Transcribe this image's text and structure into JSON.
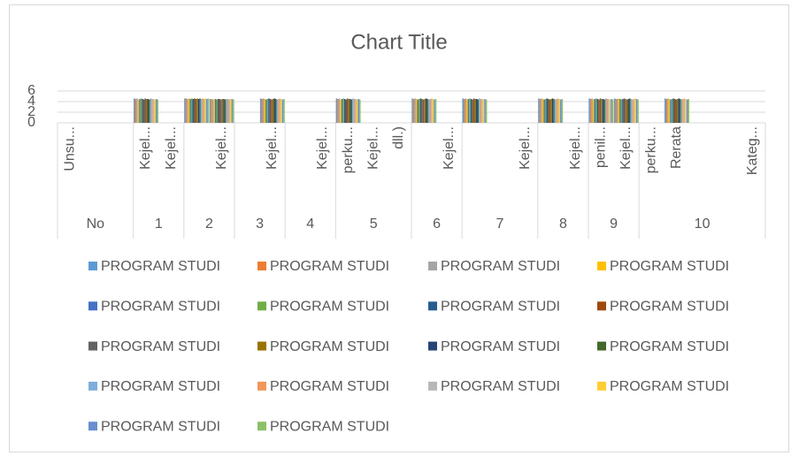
{
  "chart_data": {
    "type": "bar",
    "title": "Chart Title",
    "ylim": [
      0,
      6
    ],
    "yticks": [
      0,
      2,
      4,
      6
    ],
    "grid": true,
    "legend": "bottom",
    "categories": [
      "Unsu...",
      null,
      null,
      "Kejel...",
      "Kejel...",
      null,
      "Kejel...",
      null,
      "Kejel...",
      null,
      "Kejel...",
      "perku...",
      "Kejel...",
      "dll.)",
      null,
      "Kejel...",
      null,
      null,
      "Kejel...",
      null,
      "Kejel...",
      "penil...",
      "Kejel...",
      "perku...",
      "Rerata",
      null,
      null,
      "Kateg..."
    ],
    "category_groups": [
      "No",
      null,
      null,
      "1",
      null,
      "2",
      null,
      "3",
      null,
      "4",
      null,
      "5",
      null,
      null,
      "6",
      null,
      "7",
      null,
      null,
      "8",
      null,
      "9",
      null,
      "10",
      null,
      null,
      null,
      null
    ],
    "series": [
      {
        "name": "PROGRAM STUDI",
        "color": "#5b9bd5",
        "values": [
          null,
          null,
          null,
          4.6,
          null,
          4.6,
          4.5,
          null,
          4.6,
          null,
          null,
          4.6,
          null,
          null,
          4.6,
          null,
          4.6,
          null,
          null,
          4.6,
          null,
          4.6,
          4.6,
          null,
          4.6,
          null,
          null,
          null
        ]
      },
      {
        "name": "PROGRAM STUDI",
        "color": "#ed7d31",
        "values": [
          null,
          null,
          null,
          4.5,
          null,
          4.6,
          4.5,
          null,
          4.5,
          null,
          null,
          4.5,
          null,
          null,
          4.5,
          null,
          4.5,
          null,
          null,
          4.5,
          null,
          4.5,
          4.5,
          null,
          4.5,
          null,
          null,
          null
        ]
      },
      {
        "name": "PROGRAM STUDI",
        "color": "#a5a5a5",
        "values": [
          null,
          null,
          null,
          4.6,
          null,
          4.5,
          4.4,
          null,
          4.6,
          null,
          null,
          4.6,
          null,
          null,
          4.6,
          null,
          4.6,
          null,
          null,
          4.6,
          null,
          4.6,
          4.5,
          null,
          4.6,
          null,
          null,
          null
        ]
      },
      {
        "name": "PROGRAM STUDI",
        "color": "#ffc000",
        "values": [
          null,
          null,
          null,
          4.4,
          null,
          4.6,
          4.5,
          null,
          4.5,
          null,
          null,
          4.4,
          null,
          null,
          4.5,
          null,
          4.4,
          null,
          null,
          4.5,
          null,
          4.4,
          4.6,
          null,
          4.5,
          null,
          null,
          null
        ]
      },
      {
        "name": "PROGRAM STUDI",
        "color": "#4472c4",
        "values": [
          null,
          null,
          null,
          4.5,
          null,
          4.5,
          4.5,
          null,
          4.4,
          null,
          null,
          4.5,
          null,
          null,
          4.4,
          null,
          4.5,
          null,
          null,
          4.4,
          null,
          4.5,
          4.5,
          null,
          4.4,
          null,
          null,
          null
        ]
      },
      {
        "name": "PROGRAM STUDI",
        "color": "#70ad47",
        "values": [
          null,
          null,
          null,
          4.6,
          null,
          4.6,
          4.4,
          null,
          4.5,
          null,
          null,
          4.6,
          null,
          null,
          4.5,
          null,
          4.6,
          null,
          null,
          4.5,
          null,
          4.6,
          4.4,
          null,
          4.5,
          null,
          null,
          null
        ]
      },
      {
        "name": "PROGRAM STUDI",
        "color": "#255e91",
        "values": [
          null,
          null,
          null,
          4.5,
          null,
          4.5,
          4.5,
          null,
          4.6,
          null,
          null,
          4.5,
          null,
          null,
          4.6,
          null,
          4.5,
          null,
          null,
          4.6,
          null,
          4.5,
          4.5,
          null,
          4.6,
          null,
          null,
          null
        ]
      },
      {
        "name": "PROGRAM STUDI",
        "color": "#9e480e",
        "values": [
          null,
          null,
          null,
          4.4,
          null,
          4.6,
          4.5,
          null,
          4.5,
          null,
          null,
          4.4,
          null,
          null,
          4.5,
          null,
          4.4,
          null,
          null,
          4.5,
          null,
          4.4,
          4.6,
          null,
          4.5,
          null,
          null,
          null
        ]
      },
      {
        "name": "PROGRAM STUDI",
        "color": "#636363",
        "values": [
          null,
          null,
          null,
          4.6,
          null,
          4.5,
          4.4,
          null,
          4.4,
          null,
          null,
          4.6,
          null,
          null,
          4.4,
          null,
          4.6,
          null,
          null,
          4.4,
          null,
          4.6,
          4.5,
          null,
          4.4,
          null,
          null,
          null
        ]
      },
      {
        "name": "PROGRAM STUDI",
        "color": "#997300",
        "values": [
          null,
          null,
          null,
          4.5,
          null,
          4.6,
          4.5,
          null,
          4.5,
          null,
          null,
          4.5,
          null,
          null,
          4.5,
          null,
          4.5,
          null,
          null,
          4.5,
          null,
          4.5,
          4.4,
          null,
          4.5,
          null,
          null,
          null
        ]
      },
      {
        "name": "PROGRAM STUDI",
        "color": "#264478",
        "values": [
          null,
          null,
          null,
          4.5,
          null,
          4.5,
          4.5,
          null,
          4.6,
          null,
          null,
          4.5,
          null,
          null,
          4.6,
          null,
          4.5,
          null,
          null,
          4.6,
          null,
          4.5,
          4.5,
          null,
          4.6,
          null,
          null,
          null
        ]
      },
      {
        "name": "PROGRAM STUDI",
        "color": "#43682b",
        "values": [
          null,
          null,
          null,
          4.4,
          null,
          4.6,
          4.4,
          null,
          4.5,
          null,
          null,
          4.4,
          null,
          null,
          4.5,
          null,
          4.4,
          null,
          null,
          4.5,
          null,
          4.4,
          4.6,
          null,
          4.5,
          null,
          null,
          null
        ]
      },
      {
        "name": "PROGRAM STUDI",
        "color": "#7cafdd",
        "values": [
          null,
          null,
          null,
          4.6,
          null,
          4.5,
          4.5,
          null,
          4.4,
          null,
          null,
          4.6,
          null,
          null,
          4.4,
          null,
          4.6,
          null,
          null,
          4.4,
          null,
          4.6,
          4.5,
          null,
          4.4,
          null,
          null,
          null
        ]
      },
      {
        "name": "PROGRAM STUDI",
        "color": "#f1975a",
        "values": [
          null,
          null,
          null,
          4.5,
          null,
          4.6,
          4.5,
          null,
          4.5,
          null,
          null,
          4.5,
          null,
          null,
          4.5,
          null,
          4.5,
          null,
          null,
          4.5,
          null,
          4.5,
          4.4,
          null,
          4.5,
          null,
          null,
          null
        ]
      },
      {
        "name": "PROGRAM STUDI",
        "color": "#b7b7b7",
        "values": [
          null,
          null,
          null,
          4.5,
          null,
          4.5,
          4.4,
          null,
          4.6,
          null,
          null,
          4.5,
          null,
          null,
          4.6,
          null,
          4.5,
          null,
          null,
          4.6,
          null,
          4.5,
          4.5,
          null,
          4.6,
          null,
          null,
          null
        ]
      },
      {
        "name": "PROGRAM STUDI",
        "color": "#ffcd33",
        "values": [
          null,
          null,
          null,
          4.4,
          null,
          4.6,
          4.5,
          null,
          4.5,
          null,
          null,
          4.4,
          null,
          null,
          4.5,
          null,
          4.4,
          null,
          null,
          4.5,
          null,
          4.4,
          4.6,
          null,
          4.5,
          null,
          null,
          null
        ]
      },
      {
        "name": "PROGRAM STUDI",
        "color": "#698ed0",
        "values": [
          null,
          null,
          null,
          4.5,
          null,
          4.5,
          4.5,
          null,
          4.4,
          null,
          null,
          4.5,
          null,
          null,
          4.4,
          null,
          4.5,
          null,
          null,
          4.4,
          null,
          4.5,
          4.5,
          null,
          4.4,
          null,
          null,
          null
        ]
      },
      {
        "name": "PROGRAM STUDI",
        "color": "#8cc168",
        "values": [
          null,
          null,
          null,
          4.4,
          null,
          4.6,
          4.4,
          null,
          4.5,
          null,
          null,
          4.4,
          null,
          null,
          4.5,
          null,
          4.4,
          null,
          null,
          4.5,
          null,
          4.4,
          4.4,
          null,
          4.5,
          null,
          null,
          null
        ]
      }
    ]
  }
}
